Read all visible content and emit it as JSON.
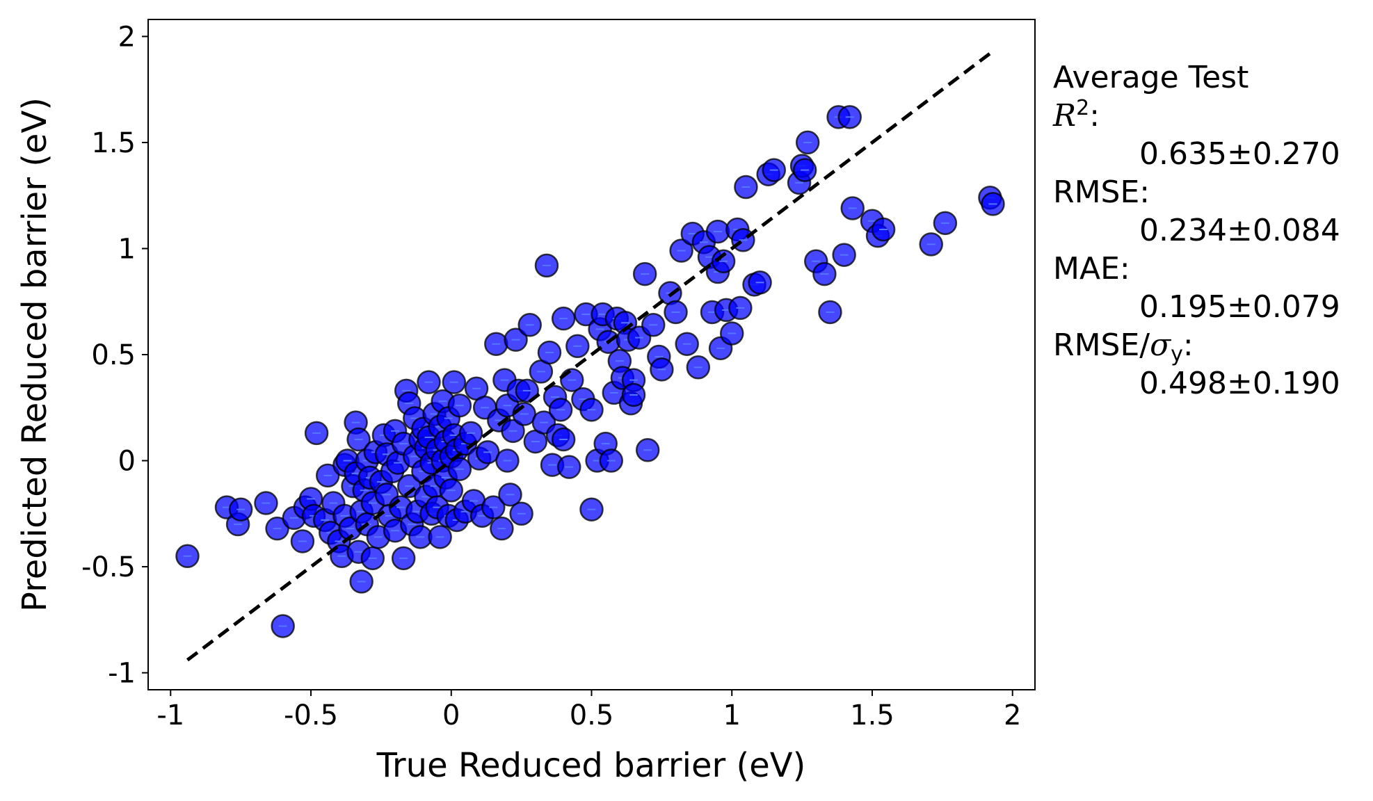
{
  "chart_data": {
    "type": "scatter",
    "xlabel": "True Reduced barrier (eV)",
    "ylabel": "Predicted Reduced barrier (eV)",
    "xlim": [
      -1.08,
      2.08
    ],
    "ylim": [
      -1.08,
      2.08
    ],
    "xticks": [
      -1,
      -0.5,
      0,
      0.5,
      1,
      1.5,
      2
    ],
    "yticks": [
      -1,
      -0.5,
      0,
      0.5,
      1,
      1.5,
      2
    ],
    "xtick_labels": [
      "-1",
      "-0.5",
      "0",
      "0.5",
      "1",
      "1.5",
      "2"
    ],
    "ytick_labels": [
      "-1",
      "-0.5",
      "0",
      "0.5",
      "1",
      "1.5",
      "2"
    ],
    "grid": false,
    "marker_color": "#0000ff",
    "marker_edge_color": "#000000",
    "parity_line": {
      "style": "dashed",
      "color": "#000000",
      "from": [
        -0.94,
        -0.94
      ],
      "to": [
        1.93,
        1.93
      ]
    },
    "points": [
      [
        -0.94,
        -0.45
      ],
      [
        -0.8,
        -0.22
      ],
      [
        -0.76,
        -0.3
      ],
      [
        -0.75,
        -0.23
      ],
      [
        -0.66,
        -0.2
      ],
      [
        -0.62,
        -0.32
      ],
      [
        -0.6,
        -0.78
      ],
      [
        -0.56,
        -0.27
      ],
      [
        -0.53,
        -0.38
      ],
      [
        -0.52,
        -0.22
      ],
      [
        -0.5,
        -0.18
      ],
      [
        -0.49,
        -0.26
      ],
      [
        -0.48,
        0.13
      ],
      [
        -0.45,
        -0.28
      ],
      [
        -0.44,
        -0.07
      ],
      [
        -0.43,
        -0.34
      ],
      [
        -0.42,
        -0.2
      ],
      [
        -0.4,
        -0.38
      ],
      [
        -0.39,
        -0.45
      ],
      [
        -0.38,
        -0.26
      ],
      [
        -0.38,
        -0.02
      ],
      [
        -0.37,
        0.0
      ],
      [
        -0.36,
        -0.32
      ],
      [
        -0.35,
        -0.12
      ],
      [
        -0.34,
        0.18
      ],
      [
        -0.34,
        -0.06
      ],
      [
        -0.33,
        0.1
      ],
      [
        -0.33,
        -0.43
      ],
      [
        -0.32,
        -0.57
      ],
      [
        -0.32,
        -0.24
      ],
      [
        -0.31,
        -0.14
      ],
      [
        -0.3,
        0.0
      ],
      [
        -0.3,
        -0.3
      ],
      [
        -0.29,
        -0.08
      ],
      [
        -0.28,
        -0.46
      ],
      [
        -0.28,
        -0.2
      ],
      [
        -0.27,
        0.04
      ],
      [
        -0.26,
        -0.36
      ],
      [
        -0.25,
        -0.1
      ],
      [
        -0.24,
        0.12
      ],
      [
        -0.23,
        -0.16
      ],
      [
        -0.23,
        0.03
      ],
      [
        -0.22,
        -0.26
      ],
      [
        -0.21,
        -0.05
      ],
      [
        -0.2,
        -0.33
      ],
      [
        -0.2,
        0.14
      ],
      [
        -0.19,
        -0.01
      ],
      [
        -0.18,
        -0.22
      ],
      [
        -0.17,
        0.08
      ],
      [
        -0.17,
        -0.46
      ],
      [
        -0.16,
        0.33
      ],
      [
        -0.15,
        -0.12
      ],
      [
        -0.15,
        0.27
      ],
      [
        -0.14,
        -0.3
      ],
      [
        -0.13,
        0.2
      ],
      [
        -0.13,
        0.02
      ],
      [
        -0.12,
        -0.24
      ],
      [
        -0.11,
        0.1
      ],
      [
        -0.11,
        -0.36
      ],
      [
        -0.1,
        0.15
      ],
      [
        -0.1,
        -0.05
      ],
      [
        -0.09,
        0.06
      ],
      [
        -0.09,
        -0.17
      ],
      [
        -0.08,
        0.37
      ],
      [
        -0.08,
        0.11
      ],
      [
        -0.07,
        -0.25
      ],
      [
        -0.07,
        -0.01
      ],
      [
        -0.06,
        0.22
      ],
      [
        -0.06,
        -0.12
      ],
      [
        -0.05,
        0.05
      ],
      [
        -0.05,
        -0.22
      ],
      [
        -0.04,
        0.16
      ],
      [
        -0.04,
        -0.36
      ],
      [
        -0.03,
        0.0
      ],
      [
        -0.03,
        0.28
      ],
      [
        -0.02,
        -0.08
      ],
      [
        -0.02,
        0.09
      ],
      [
        -0.01,
        -0.26
      ],
      [
        -0.01,
        0.2
      ],
      [
        0.0,
        0.02
      ],
      [
        0.0,
        -0.14
      ],
      [
        0.01,
        0.37
      ],
      [
        0.01,
        0.12
      ],
      [
        0.02,
        -0.28
      ],
      [
        0.02,
        0.05
      ],
      [
        0.03,
        -0.04
      ],
      [
        0.03,
        0.26
      ],
      [
        0.05,
        -0.24
      ],
      [
        0.05,
        0.08
      ],
      [
        0.07,
        0.13
      ],
      [
        0.08,
        -0.19
      ],
      [
        0.09,
        0.34
      ],
      [
        0.1,
        0.01
      ],
      [
        0.11,
        -0.26
      ],
      [
        0.12,
        0.25
      ],
      [
        0.13,
        0.04
      ],
      [
        0.15,
        -0.22
      ],
      [
        0.16,
        0.55
      ],
      [
        0.17,
        0.19
      ],
      [
        0.18,
        -0.32
      ],
      [
        0.19,
        0.38
      ],
      [
        0.2,
        0.0
      ],
      [
        0.2,
        0.26
      ],
      [
        0.21,
        -0.16
      ],
      [
        0.22,
        0.14
      ],
      [
        0.23,
        0.57
      ],
      [
        0.24,
        0.33
      ],
      [
        0.25,
        -0.25
      ],
      [
        0.26,
        0.22
      ],
      [
        0.27,
        0.33
      ],
      [
        0.28,
        0.64
      ],
      [
        0.3,
        0.09
      ],
      [
        0.32,
        0.42
      ],
      [
        0.33,
        0.18
      ],
      [
        0.34,
        0.92
      ],
      [
        0.35,
        0.51
      ],
      [
        0.36,
        -0.02
      ],
      [
        0.37,
        0.3
      ],
      [
        0.38,
        0.12
      ],
      [
        0.39,
        0.24
      ],
      [
        0.4,
        0.1
      ],
      [
        0.4,
        0.67
      ],
      [
        0.42,
        -0.03
      ],
      [
        0.43,
        0.38
      ],
      [
        0.45,
        0.54
      ],
      [
        0.47,
        0.29
      ],
      [
        0.48,
        0.69
      ],
      [
        0.5,
        0.24
      ],
      [
        0.5,
        -0.23
      ],
      [
        0.52,
        0.0
      ],
      [
        0.53,
        0.62
      ],
      [
        0.54,
        0.69
      ],
      [
        0.55,
        0.08
      ],
      [
        0.56,
        0.56
      ],
      [
        0.57,
        0.0
      ],
      [
        0.58,
        0.32
      ],
      [
        0.59,
        0.67
      ],
      [
        0.6,
        0.47
      ],
      [
        0.61,
        0.39
      ],
      [
        0.62,
        0.65
      ],
      [
        0.63,
        0.57
      ],
      [
        0.64,
        0.27
      ],
      [
        0.65,
        0.38
      ],
      [
        0.65,
        0.31
      ],
      [
        0.67,
        0.58
      ],
      [
        0.69,
        0.88
      ],
      [
        0.7,
        0.05
      ],
      [
        0.72,
        0.64
      ],
      [
        0.74,
        0.49
      ],
      [
        0.75,
        0.43
      ],
      [
        0.78,
        0.79
      ],
      [
        0.8,
        0.7
      ],
      [
        0.82,
        0.99
      ],
      [
        0.84,
        0.55
      ],
      [
        0.86,
        1.07
      ],
      [
        0.88,
        0.44
      ],
      [
        0.9,
        1.03
      ],
      [
        0.92,
        0.96
      ],
      [
        0.93,
        0.7
      ],
      [
        0.95,
        1.08
      ],
      [
        0.95,
        0.89
      ],
      [
        0.96,
        0.53
      ],
      [
        0.97,
        0.94
      ],
      [
        0.98,
        0.71
      ],
      [
        1.0,
        0.6
      ],
      [
        1.02,
        1.09
      ],
      [
        1.03,
        0.72
      ],
      [
        1.04,
        1.04
      ],
      [
        1.05,
        1.29
      ],
      [
        1.08,
        0.83
      ],
      [
        1.1,
        0.84
      ],
      [
        1.13,
        1.35
      ],
      [
        1.15,
        1.37
      ],
      [
        1.24,
        1.31
      ],
      [
        1.25,
        1.39
      ],
      [
        1.26,
        1.37
      ],
      [
        1.27,
        1.5
      ],
      [
        1.3,
        0.94
      ],
      [
        1.33,
        0.88
      ],
      [
        1.35,
        0.7
      ],
      [
        1.38,
        1.62
      ],
      [
        1.4,
        0.97
      ],
      [
        1.42,
        1.62
      ],
      [
        1.43,
        1.19
      ],
      [
        1.5,
        1.13
      ],
      [
        1.52,
        1.06
      ],
      [
        1.54,
        1.09
      ],
      [
        1.71,
        1.02
      ],
      [
        1.76,
        1.12
      ],
      [
        1.92,
        1.24
      ],
      [
        1.93,
        1.21
      ]
    ]
  },
  "stats": {
    "title": "Average Test",
    "r2_symbol": "R",
    "r2_power": "2",
    "colon": ":",
    "r2_value": "0.635±0.270",
    "rmse_label": "RMSE:",
    "rmse_value": "0.234±0.084",
    "mae_label": "MAE:",
    "mae_value": "0.195±0.079",
    "rmse_sigma_prefix": "RMSE/",
    "sigma_symbol": "σ",
    "sigma_sub": "y",
    "rmse_sigma_value": "0.498±0.190"
  }
}
